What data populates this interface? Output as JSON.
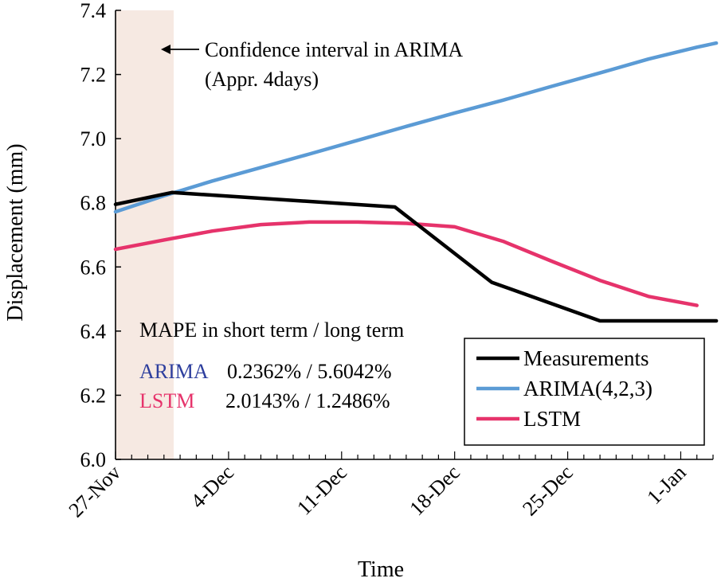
{
  "chart_data": {
    "type": "line",
    "title": "",
    "xlabel": "Time",
    "ylabel": "Displacement (mm)",
    "ylim": [
      6.0,
      7.4
    ],
    "yticks": [
      "6.0",
      "6.2",
      "6.4",
      "6.6",
      "6.8",
      "7.0",
      "7.2",
      "7.4"
    ],
    "xlim": [
      0,
      37
    ],
    "xticks": [
      {
        "day": 0,
        "label": "27-Nov"
      },
      {
        "day": 7,
        "label": "4-Dec"
      },
      {
        "day": 14,
        "label": "11-Dec"
      },
      {
        "day": 21,
        "label": "18-Dec"
      },
      {
        "day": 28,
        "label": "25-Dec"
      },
      {
        "day": 35,
        "label": "1-Jan"
      }
    ],
    "band": {
      "x_start": 0,
      "x_end": 3.6,
      "color": "#f6e9e2"
    },
    "series": [
      {
        "name": "Measurements",
        "color": "#000000",
        "x": [
          0,
          3.5,
          17.3,
          23.3,
          30.0,
          37.2
        ],
        "y": [
          6.795,
          6.832,
          6.787,
          6.552,
          6.432,
          6.432
        ]
      },
      {
        "name": "ARIMA(4,2,3)",
        "color": "#5b9bd5",
        "x": [
          0,
          3,
          6,
          9,
          12,
          15,
          18,
          21,
          24,
          27,
          30,
          33,
          36,
          37.2
        ],
        "y": [
          6.772,
          6.822,
          6.868,
          6.91,
          6.952,
          6.995,
          7.038,
          7.08,
          7.12,
          7.163,
          7.205,
          7.248,
          7.285,
          7.298
        ]
      },
      {
        "name": "LSTM",
        "color": "#e6336b",
        "x": [
          0,
          3,
          6,
          9,
          12,
          15,
          18,
          21,
          24,
          27,
          30,
          33,
          36
        ],
        "y": [
          6.655,
          6.684,
          6.712,
          6.732,
          6.74,
          6.74,
          6.736,
          6.725,
          6.68,
          6.618,
          6.558,
          6.508,
          6.48
        ]
      }
    ]
  },
  "annotations": {
    "band_label_line1": "Confidence interval in ARIMA",
    "band_label_line2": "(Appr. 4days)",
    "mape_title": "MAPE in short term / long term",
    "arima_name": "ARIMA",
    "arima_values": "0.2362% / 5.6042%",
    "lstm_name": "LSTM",
    "lstm_values": "2.0143% / 1.2486%"
  },
  "legend": {
    "items": [
      {
        "label": "Measurements",
        "color": "#000000"
      },
      {
        "label": "ARIMA(4,2,3)",
        "color": "#5b9bd5"
      },
      {
        "label": "LSTM",
        "color": "#e6336b"
      }
    ]
  },
  "colors": {
    "arima_text": "#2e3f9e",
    "lstm_text": "#e6336b"
  }
}
